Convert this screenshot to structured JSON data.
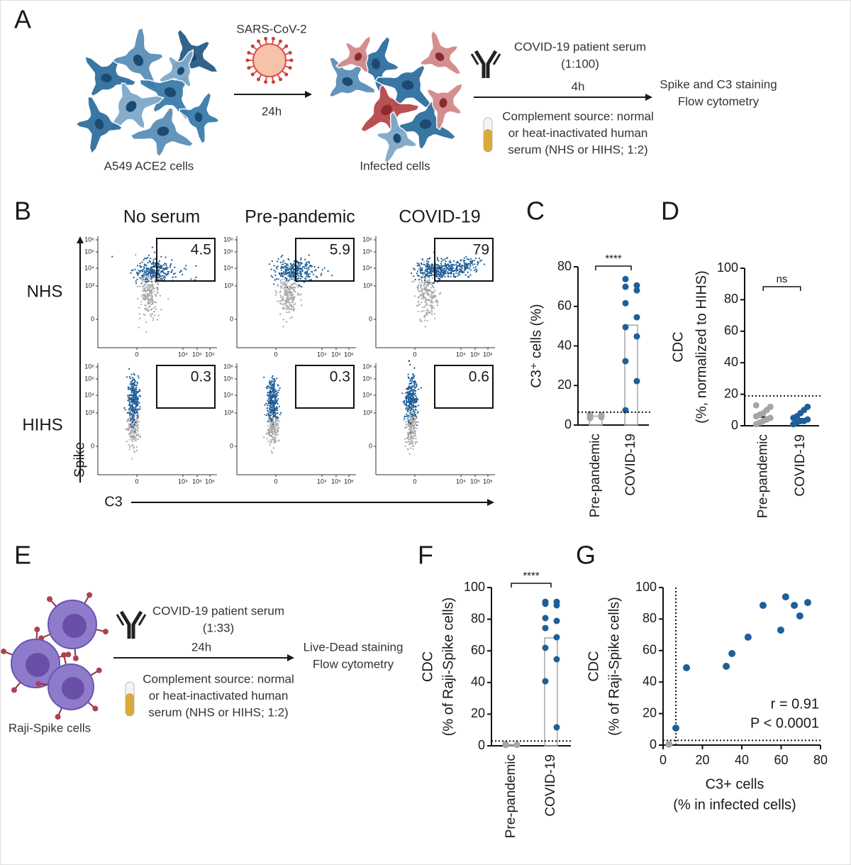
{
  "panel_a": {
    "letter": "A",
    "cells_label": "A549 ACE2 cells",
    "virus_label": "SARS-CoV-2",
    "step1_time": "24h",
    "infected_label": "Infected cells",
    "serum_lines": [
      "COVID-19 patient serum",
      "(1:100)"
    ],
    "step2_time": "4h",
    "readout_lines": [
      "Spike and C3 staining",
      "Flow cytometry"
    ],
    "complement_lines": [
      "Complement source: normal",
      "or heat-inactivated human",
      "serum (NHS or HIHS; 1:2)"
    ]
  },
  "panel_b": {
    "letter": "B",
    "columns": [
      "No serum",
      "Pre-pandemic",
      "COVID-19"
    ],
    "rows": [
      "NHS",
      "HIHS"
    ],
    "gates": [
      [
        4.5,
        5.9,
        79
      ],
      [
        0.3,
        0.3,
        0.6
      ]
    ],
    "y_tick_labels": [
      "10⁶",
      "10⁵",
      "10⁴",
      "10³",
      "0"
    ],
    "x_tick_labels": [
      "0",
      "10⁴",
      "10⁵",
      "10⁶"
    ],
    "y_axis_label": "Spike",
    "x_axis_label": "C3"
  },
  "panel_e": {
    "letter": "E",
    "cells_label": "Raji-Spike cells",
    "serum_lines": [
      "COVID-19 patient serum",
      "(1:33)"
    ],
    "step_time": "24h",
    "readout_lines": [
      "Live-Dead staining",
      "Flow cytometry"
    ],
    "complement_lines": [
      "Complement source: normal",
      "or heat-inactivated human",
      "serum (NHS or HIHS; 1:2)"
    ]
  },
  "chart_data": [
    {
      "type": "bar",
      "panel": "C",
      "ylabel": [
        "C3⁺ cells (%)"
      ],
      "categories": [
        "Pre-pandemic",
        "COVID-19"
      ],
      "values": [
        4.5,
        50.5
      ],
      "points": [
        [
          3.5,
          4,
          4.5,
          5,
          5.5,
          4,
          3.8,
          4.6
        ],
        [
          73.8,
          70.6,
          69.9,
          68.1,
          61.6,
          54.5,
          49.5,
          44.8,
          32.3,
          22.2,
          7.5
        ]
      ],
      "point_colors": [
        "#a6a6a6",
        "#1f5f99"
      ],
      "bar_color": "#a6a6a6",
      "threshold": 6.5,
      "significance": "****",
      "ylim": [
        0,
        80
      ],
      "yticks": [
        0,
        20,
        40,
        60,
        80
      ]
    },
    {
      "type": "dot",
      "panel": "D",
      "ylabel": [
        "CDC",
        "(%, normalized to HIHS)"
      ],
      "categories": [
        "Pre-pandemic",
        "COVID-19"
      ],
      "values": [
        5.5,
        4.5
      ],
      "points": [
        [
          1,
          2,
          3,
          4,
          5,
          6,
          7,
          8,
          10,
          12,
          13
        ],
        [
          1,
          2,
          3,
          3,
          4,
          5,
          6,
          8,
          10,
          12
        ]
      ],
      "point_colors": [
        "#a6a6a6",
        "#1f5f99"
      ],
      "threshold": 19,
      "significance": "ns",
      "ylim": [
        0,
        100
      ],
      "yticks": [
        0,
        20,
        40,
        60,
        80,
        100
      ]
    },
    {
      "type": "bar",
      "panel": "F",
      "ylabel": [
        "CDC",
        "(% of Raji-Spike cells)"
      ],
      "categories": [
        "Pre-pandemic",
        "COVID-19"
      ],
      "values": [
        0.8,
        68.2
      ],
      "points": [
        [
          0.5,
          0.8,
          1,
          0.6,
          1.2
        ],
        [
          91,
          91,
          89.7,
          88.8,
          80.7,
          78.9,
          74.4,
          68.6,
          61.9,
          54.7,
          40.8,
          11.7
        ]
      ],
      "point_colors": [
        "#a6a6a6",
        "#1f5f99"
      ],
      "bar_color": "#a6a6a6",
      "threshold": 3,
      "significance": "****",
      "ylim": [
        0,
        100
      ],
      "yticks": [
        0,
        20,
        40,
        60,
        80,
        100
      ]
    },
    {
      "type": "scatter",
      "panel": "G",
      "xlabel": [
        "C3+ cells",
        "(% in infected cells)"
      ],
      "ylabel": [
        "CDC",
        "(% of Raji-Spike cells)"
      ],
      "series": [
        {
          "color": "#1f5f99",
          "x": [
            6.5,
            11.9,
            32.1,
            35,
            43.2,
            50.8,
            59.8,
            62.3,
            66.7,
            69.5,
            73.5
          ],
          "y": [
            10.8,
            49.1,
            50,
            58.1,
            68.5,
            88.7,
            73,
            94.1,
            88.7,
            82,
            90.5
          ]
        },
        {
          "color": "#a6a6a6",
          "x": [
            3
          ],
          "y": [
            0.5
          ]
        }
      ],
      "threshold_x": 6.5,
      "threshold_y": 3,
      "annotations": [
        "r = 0.91",
        "P < 0.0001"
      ],
      "xlim": [
        0,
        80
      ],
      "xticks": [
        0,
        20,
        40,
        60,
        80
      ],
      "ylim": [
        0,
        100
      ],
      "yticks": [
        0,
        20,
        40,
        60,
        80,
        100
      ]
    }
  ]
}
